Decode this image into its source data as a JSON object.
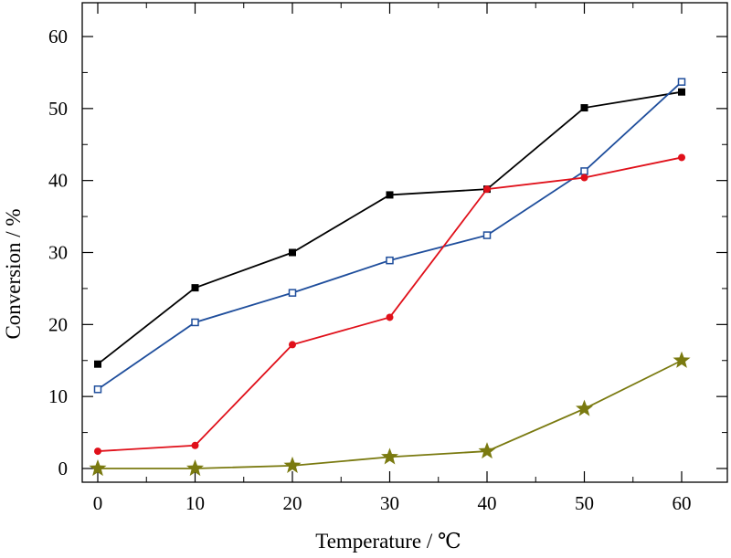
{
  "chart_data": {
    "type": "line",
    "title": "",
    "xlabel": "Temperature / ℃",
    "ylabel": "Conversion / %",
    "xlim": [
      -2,
      65
    ],
    "ylim": [
      -2,
      65
    ],
    "x_ticks": [
      0,
      10,
      20,
      30,
      40,
      50,
      60
    ],
    "y_ticks": [
      0,
      10,
      20,
      30,
      40,
      50,
      60
    ],
    "x_tick_labels": [
      "0",
      "10",
      "20",
      "30",
      "40",
      "50",
      "60"
    ],
    "y_tick_labels": [
      "0",
      "10",
      "20",
      "30",
      "40",
      "50",
      "60"
    ],
    "grid": false,
    "legend": "none",
    "x": [
      0,
      10,
      20,
      30,
      40,
      50,
      60
    ],
    "series": [
      {
        "color": "#000000",
        "marker": "filled-square",
        "values": [
          14.5,
          25.1,
          30.0,
          38.0,
          38.8,
          50.1,
          52.3
        ]
      },
      {
        "color": "#1f4e9c",
        "marker": "open-square",
        "values": [
          11.0,
          20.3,
          24.4,
          28.9,
          32.4,
          41.3,
          53.7
        ]
      },
      {
        "color": "#e0101a",
        "marker": "filled-circle",
        "values": [
          2.4,
          3.2,
          17.2,
          21.0,
          38.8,
          40.4,
          43.2
        ]
      },
      {
        "color": "#7a7a10",
        "marker": "star",
        "values": [
          0.0,
          0.0,
          0.4,
          1.6,
          2.4,
          8.3,
          15.0
        ]
      }
    ]
  }
}
